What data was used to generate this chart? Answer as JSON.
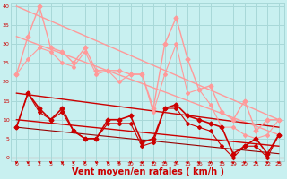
{
  "background_color": "#c8f0f0",
  "grid_color": "#a8d8d8",
  "xlabel": "Vent moyen/en rafales ( km/h )",
  "xlabel_color": "#cc0000",
  "xlabel_fontsize": 7,
  "tick_color": "#cc0000",
  "xlim": [
    -0.5,
    23.5
  ],
  "ylim": [
    -1,
    41
  ],
  "yticks": [
    0,
    5,
    10,
    15,
    20,
    25,
    30,
    35,
    40
  ],
  "xticks": [
    0,
    1,
    2,
    3,
    4,
    5,
    6,
    7,
    8,
    9,
    10,
    11,
    12,
    13,
    14,
    15,
    16,
    17,
    18,
    19,
    20,
    21,
    22,
    23
  ],
  "series": [
    {
      "x": [
        0,
        23
      ],
      "y": [
        40,
        10
      ],
      "color": "#ff9999",
      "lw": 1.0,
      "marker": null,
      "ms": 0
    },
    {
      "x": [
        0,
        23
      ],
      "y": [
        32,
        6
      ],
      "color": "#ff9999",
      "lw": 1.0,
      "marker": null,
      "ms": 0
    },
    {
      "x": [
        0,
        1,
        2,
        3,
        4,
        5,
        6,
        7,
        8,
        9,
        10,
        11,
        12,
        13,
        14,
        15,
        16,
        17,
        18,
        19,
        20,
        21,
        22,
        23
      ],
      "y": [
        22,
        32,
        40,
        29,
        28,
        25,
        29,
        23,
        23,
        23,
        22,
        22,
        13,
        30,
        37,
        26,
        18,
        19,
        12,
        10,
        15,
        7,
        10,
        10
      ],
      "color": "#ff9999",
      "lw": 1.0,
      "marker": "D",
      "ms": 2.5
    },
    {
      "x": [
        0,
        1,
        2,
        3,
        4,
        5,
        6,
        7,
        8,
        9,
        10,
        11,
        12,
        13,
        14,
        15,
        16,
        17,
        18,
        19,
        20,
        21,
        22,
        23
      ],
      "y": [
        22,
        26,
        29,
        28,
        25,
        24,
        28,
        22,
        23,
        20,
        22,
        22,
        12,
        22,
        30,
        17,
        18,
        14,
        8,
        8,
        6,
        5,
        6,
        10
      ],
      "color": "#ff9999",
      "lw": 0.8,
      "marker": "D",
      "ms": 2.0
    },
    {
      "x": [
        0,
        23
      ],
      "y": [
        17,
        8
      ],
      "color": "#cc0000",
      "lw": 1.0,
      "marker": null,
      "ms": 0
    },
    {
      "x": [
        0,
        23
      ],
      "y": [
        10,
        3
      ],
      "color": "#cc0000",
      "lw": 1.0,
      "marker": null,
      "ms": 0
    },
    {
      "x": [
        0,
        23
      ],
      "y": [
        8,
        1
      ],
      "color": "#990000",
      "lw": 0.8,
      "marker": null,
      "ms": 0
    },
    {
      "x": [
        0,
        1,
        2,
        3,
        4,
        5,
        6,
        7,
        8,
        9,
        10,
        11,
        12,
        13,
        14,
        15,
        16,
        17,
        18,
        19,
        20,
        21,
        22,
        23
      ],
      "y": [
        8,
        17,
        13,
        10,
        13,
        7,
        5,
        5,
        10,
        10,
        11,
        4,
        5,
        13,
        14,
        11,
        10,
        9,
        8,
        1,
        3,
        5,
        1,
        6
      ],
      "color": "#cc0000",
      "lw": 1.2,
      "marker": "D",
      "ms": 2.5
    },
    {
      "x": [
        0,
        1,
        2,
        3,
        4,
        5,
        6,
        7,
        8,
        9,
        10,
        11,
        12,
        13,
        14,
        15,
        16,
        17,
        18,
        19,
        20,
        21,
        22,
        23
      ],
      "y": [
        8,
        17,
        12,
        10,
        12,
        7,
        5,
        5,
        9,
        9,
        9,
        3,
        4,
        13,
        13,
        9,
        8,
        7,
        3,
        0,
        3,
        3,
        0,
        6
      ],
      "color": "#cc0000",
      "lw": 0.8,
      "marker": "D",
      "ms": 2.0
    }
  ]
}
